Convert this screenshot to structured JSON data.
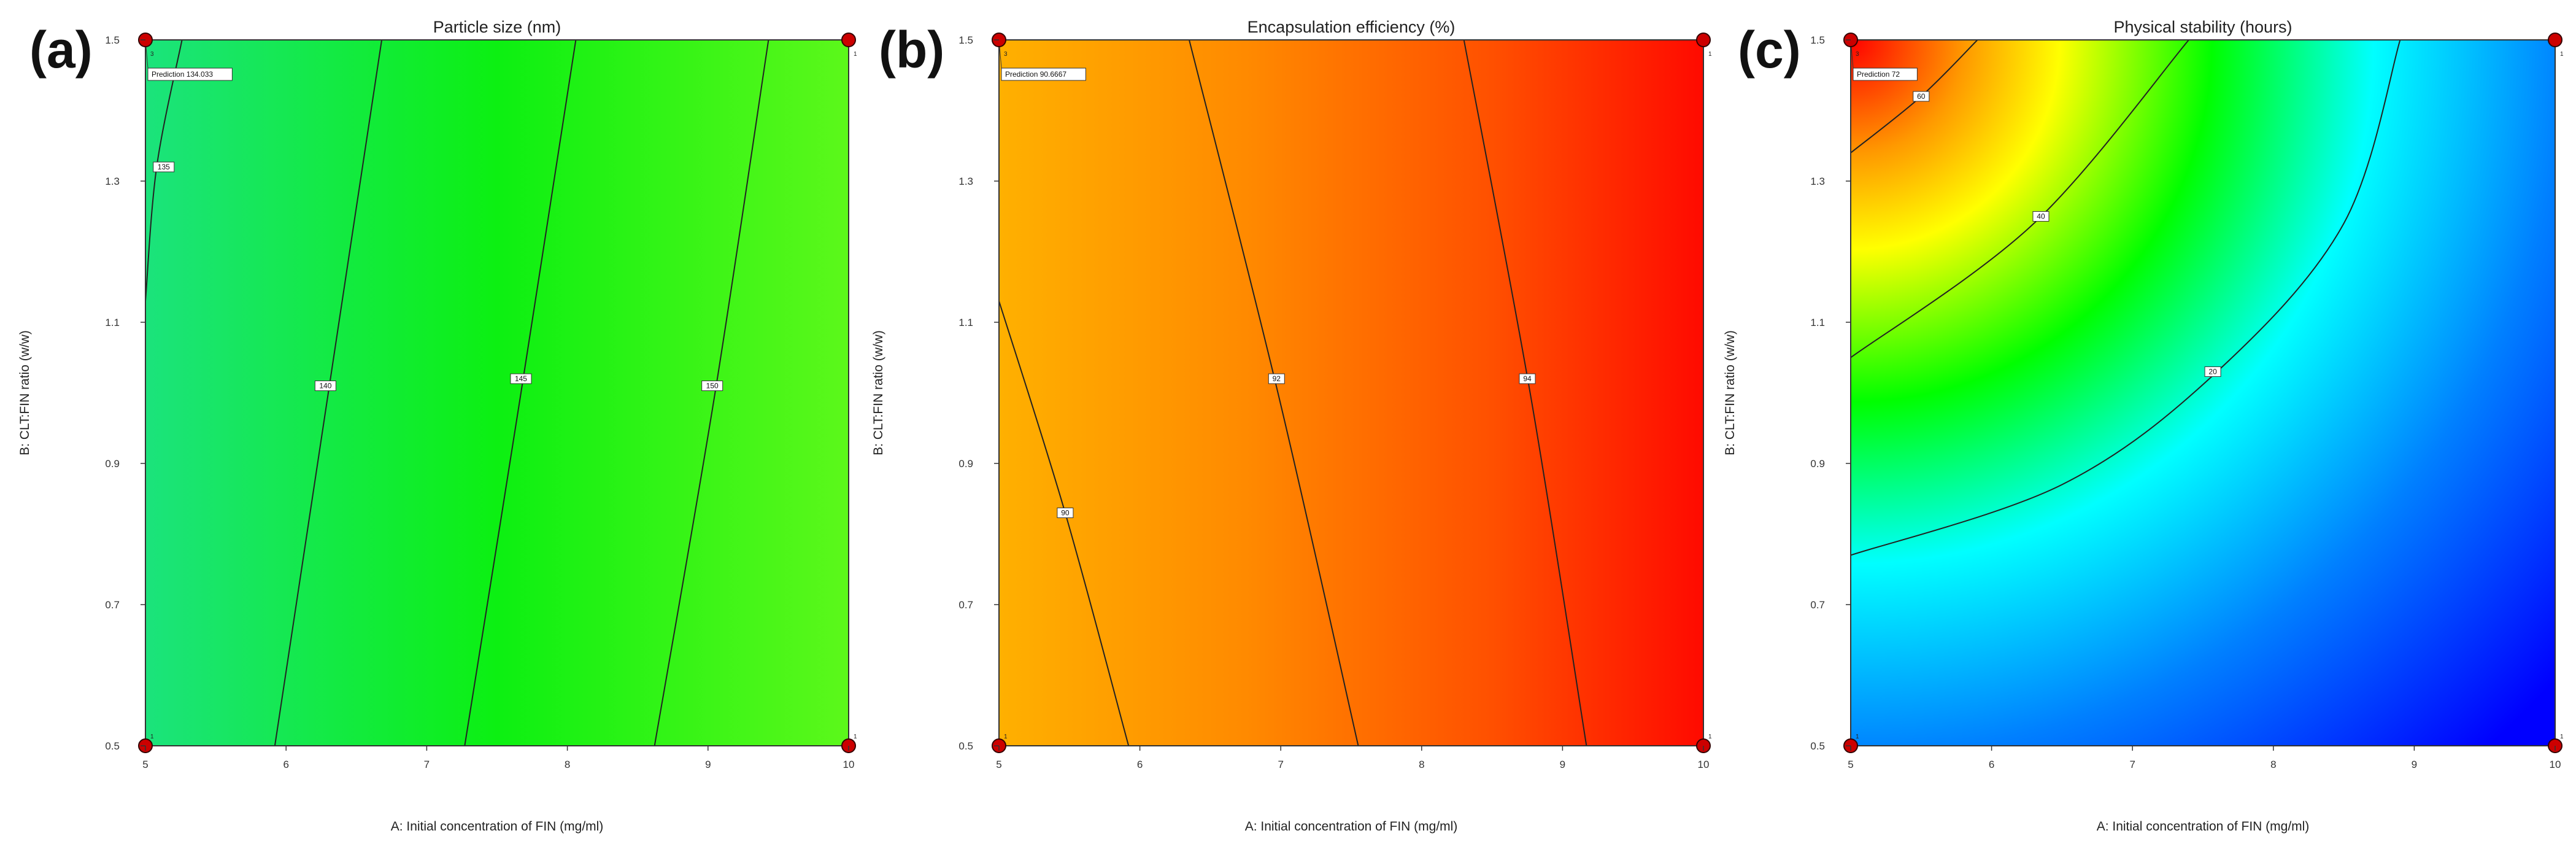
{
  "chart_data": [
    {
      "type": "contour",
      "panel_label": "(a)",
      "title": "Particle size (nm)",
      "xlabel": "A: Initial concentration of FIN (mg/ml)",
      "ylabel": "B: CLT:FIN ratio (w/w)",
      "xlim": [
        5,
        10
      ],
      "ylim": [
        0.5,
        1.5
      ],
      "x_ticks": [
        "5",
        "6",
        "7",
        "8",
        "9",
        "10"
      ],
      "y_ticks": [
        "0.5",
        "0.7",
        "0.9",
        "1.1",
        "1.3",
        "1.5"
      ],
      "colormap": [
        "#1be37c",
        "#0cf012",
        "#5cf81a"
      ],
      "contours": [
        {
          "level": "135",
          "points": [
            [
              5.0,
              1.13
            ],
            [
              5.08,
              1.32
            ],
            [
              5.26,
              1.5
            ]
          ],
          "label_at": [
            5.13,
            1.32
          ]
        },
        {
          "level": "140",
          "points": [
            [
              5.92,
              0.5
            ],
            [
              6.3,
              1.0
            ],
            [
              6.68,
              1.5
            ]
          ],
          "label_at": [
            6.28,
            1.01
          ]
        },
        {
          "level": "145",
          "points": [
            [
              7.27,
              0.5
            ],
            [
              7.67,
              1.0
            ],
            [
              8.06,
              1.5
            ]
          ],
          "label_at": [
            7.67,
            1.02
          ]
        },
        {
          "level": "150",
          "points": [
            [
              8.62,
              0.5
            ],
            [
              9.05,
              1.0
            ],
            [
              9.43,
              1.5
            ]
          ],
          "label_at": [
            9.03,
            1.01
          ]
        }
      ],
      "design_points": [
        [
          5,
          1.5
        ],
        [
          10,
          1.5
        ],
        [
          5,
          0.5
        ],
        [
          10,
          0.5
        ]
      ],
      "design_point_labels": [
        "3",
        "1",
        "1",
        "1"
      ],
      "prediction": {
        "text": "Prediction  134.033",
        "at": [
          5,
          1.5
        ]
      }
    },
    {
      "type": "contour",
      "panel_label": "(b)",
      "title": "Encapsulation efficiency (%)",
      "xlabel": "A: Initial concentration of FIN (mg/ml)",
      "ylabel": "B: CLT:FIN ratio (w/w)",
      "xlim": [
        5,
        10
      ],
      "ylim": [
        0.5,
        1.5
      ],
      "x_ticks": [
        "5",
        "6",
        "7",
        "8",
        "9",
        "10"
      ],
      "y_ticks": [
        "0.5",
        "0.7",
        "0.9",
        "1.1",
        "1.3",
        "1.5"
      ],
      "colormap": [
        "#ffb000",
        "#ff8a00",
        "#ff5000",
        "#ff0a00"
      ],
      "contours": [
        {
          "level": "90",
          "points": [
            [
              5.0,
              1.13
            ],
            [
              5.47,
              0.83
            ],
            [
              5.92,
              0.5
            ]
          ],
          "label_at": [
            5.47,
            0.83
          ]
        },
        {
          "level": "92",
          "points": [
            [
              6.35,
              1.5
            ],
            [
              6.98,
              1.0
            ],
            [
              7.55,
              0.5
            ]
          ],
          "label_at": [
            6.97,
            1.02
          ]
        },
        {
          "level": "94",
          "points": [
            [
              8.3,
              1.5
            ],
            [
              8.77,
              1.0
            ],
            [
              9.17,
              0.5
            ]
          ],
          "label_at": [
            8.75,
            1.02
          ]
        }
      ],
      "design_points": [
        [
          5,
          1.5
        ],
        [
          10,
          1.5
        ],
        [
          5,
          0.5
        ],
        [
          10,
          0.5
        ]
      ],
      "design_point_labels": [
        "3",
        "1",
        "1",
        "1"
      ],
      "prediction": {
        "text": "Prediction  90.6667",
        "at": [
          5,
          1.5
        ]
      }
    },
    {
      "type": "contour",
      "panel_label": "(c)",
      "title": "Physical stability (hours)",
      "xlabel": "A: Initial concentration of FIN (mg/ml)",
      "ylabel": "B: CLT:FIN ratio (w/w)",
      "xlim": [
        5,
        10
      ],
      "ylim": [
        0.5,
        1.5
      ],
      "x_ticks": [
        "5",
        "6",
        "7",
        "8",
        "9",
        "10"
      ],
      "y_ticks": [
        "0.5",
        "0.7",
        "0.9",
        "1.1",
        "1.3",
        "1.5"
      ],
      "colormap": [
        "#ff0000",
        "#ff9900",
        "#ffff00",
        "#00ff00",
        "#00ffff",
        "#0080ff",
        "#0000ff"
      ],
      "contours": [
        {
          "level": "60",
          "points": [
            [
              5.0,
              1.34
            ],
            [
              5.5,
              1.42
            ],
            [
              5.9,
              1.5
            ]
          ],
          "label_at": [
            5.5,
            1.42
          ]
        },
        {
          "level": "40",
          "points": [
            [
              5.0,
              1.05
            ],
            [
              6.3,
              1.24
            ],
            [
              7.4,
              1.5
            ]
          ],
          "label_at": [
            6.35,
            1.25
          ]
        },
        {
          "level": "20",
          "points": [
            [
              5.0,
              0.77
            ],
            [
              6.5,
              0.87
            ],
            [
              7.6,
              1.03
            ],
            [
              8.5,
              1.24
            ],
            [
              8.9,
              1.5
            ]
          ],
          "label_at": [
            7.57,
            1.03
          ]
        }
      ],
      "design_points": [
        [
          5,
          1.5
        ],
        [
          10,
          1.5
        ],
        [
          5,
          0.5
        ],
        [
          10,
          0.5
        ]
      ],
      "design_point_labels": [
        "3",
        "1",
        "1",
        "1"
      ],
      "prediction": {
        "text": "Prediction  72",
        "at": [
          5,
          1.5
        ]
      }
    }
  ]
}
